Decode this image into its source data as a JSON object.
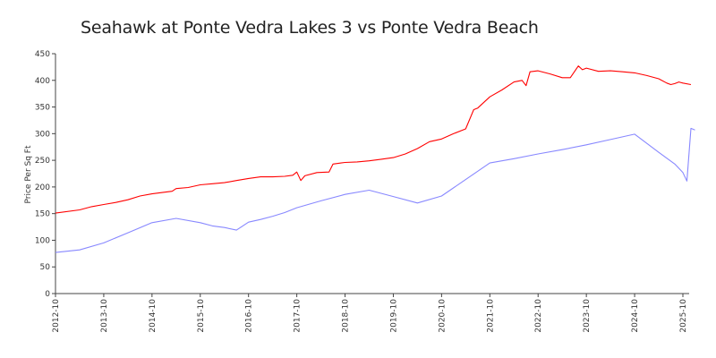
{
  "chart_data": {
    "type": "line",
    "title": "Seahawk at Ponte Vedra Lakes 3 vs Ponte Vedra Beach",
    "xlabel": "",
    "ylabel": "Price Per Sq Ft",
    "ylim": [
      0,
      450
    ],
    "yticks": [
      0,
      50,
      100,
      150,
      200,
      250,
      300,
      350,
      400,
      450
    ],
    "xlim": [
      "2012-10",
      "2025-12"
    ],
    "xticks": [
      "2012-10",
      "2013-10",
      "2014-10",
      "2015-10",
      "2016-10",
      "2017-10",
      "2018-10",
      "2019-10",
      "2020-10",
      "2021-10",
      "2022-10",
      "2023-10",
      "2024-10",
      "2025-10"
    ],
    "grid": false,
    "legend": "none",
    "series": [
      {
        "color": "#ff0000",
        "points": [
          [
            "2012-10",
            151
          ],
          [
            "2013-04",
            157
          ],
          [
            "2013-07",
            163
          ],
          [
            "2013-10",
            167
          ],
          [
            "2014-01",
            171
          ],
          [
            "2014-04",
            176
          ],
          [
            "2014-07",
            183
          ],
          [
            "2014-10",
            187
          ],
          [
            "2015-01",
            190
          ],
          [
            "2015-03",
            192
          ],
          [
            "2015-04",
            197
          ],
          [
            "2015-07",
            199
          ],
          [
            "2015-10",
            204
          ],
          [
            "2016-01",
            206
          ],
          [
            "2016-04",
            208
          ],
          [
            "2016-07",
            212
          ],
          [
            "2016-10",
            216
          ],
          [
            "2017-01",
            219
          ],
          [
            "2017-04",
            219
          ],
          [
            "2017-07",
            220
          ],
          [
            "2017-09",
            222
          ],
          [
            "2017-10",
            228
          ],
          [
            "2017-11",
            212
          ],
          [
            "2017-12",
            221
          ],
          [
            "2018-03",
            227
          ],
          [
            "2018-06",
            228
          ],
          [
            "2018-07",
            243
          ],
          [
            "2018-10",
            246
          ],
          [
            "2019-01",
            247
          ],
          [
            "2019-04",
            249
          ],
          [
            "2019-07",
            252
          ],
          [
            "2019-10",
            255
          ],
          [
            "2020-01",
            262
          ],
          [
            "2020-04",
            272
          ],
          [
            "2020-07",
            285
          ],
          [
            "2020-10",
            290
          ],
          [
            "2021-01",
            300
          ],
          [
            "2021-04",
            309
          ],
          [
            "2021-06",
            345
          ],
          [
            "2021-07",
            348
          ],
          [
            "2021-10",
            369
          ],
          [
            "2022-01",
            382
          ],
          [
            "2022-04",
            397
          ],
          [
            "2022-06",
            400
          ],
          [
            "2022-07",
            390
          ],
          [
            "2022-08",
            416
          ],
          [
            "2022-10",
            418
          ],
          [
            "2023-01",
            412
          ],
          [
            "2023-04",
            405
          ],
          [
            "2023-06",
            405
          ],
          [
            "2023-08",
            427
          ],
          [
            "2023-09",
            420
          ],
          [
            "2023-10",
            423
          ],
          [
            "2024-01",
            417
          ],
          [
            "2024-04",
            418
          ],
          [
            "2024-07",
            416
          ],
          [
            "2024-10",
            414
          ],
          [
            "2025-01",
            409
          ],
          [
            "2025-04",
            403
          ],
          [
            "2025-06",
            395
          ],
          [
            "2025-07",
            392
          ],
          [
            "2025-08",
            394
          ],
          [
            "2025-09",
            397
          ],
          [
            "2025-10",
            395
          ],
          [
            "2025-12",
            392
          ]
        ]
      },
      {
        "color": "#8888ff",
        "points": [
          [
            "2012-10",
            77
          ],
          [
            "2013-04",
            82
          ],
          [
            "2013-10",
            95
          ],
          [
            "2014-04",
            114
          ],
          [
            "2014-10",
            133
          ],
          [
            "2015-04",
            141
          ],
          [
            "2015-10",
            133
          ],
          [
            "2016-01",
            127
          ],
          [
            "2016-04",
            124
          ],
          [
            "2016-07",
            119
          ],
          [
            "2016-10",
            134
          ],
          [
            "2017-01",
            139
          ],
          [
            "2017-04",
            145
          ],
          [
            "2017-07",
            152
          ],
          [
            "2017-10",
            161
          ],
          [
            "2018-04",
            174
          ],
          [
            "2018-10",
            186
          ],
          [
            "2019-04",
            194
          ],
          [
            "2019-10",
            182
          ],
          [
            "2020-04",
            170
          ],
          [
            "2020-10",
            183
          ],
          [
            "2021-04",
            214
          ],
          [
            "2021-10",
            245
          ],
          [
            "2022-04",
            253
          ],
          [
            "2022-10",
            262
          ],
          [
            "2023-04",
            270
          ],
          [
            "2023-10",
            279
          ],
          [
            "2024-04",
            289
          ],
          [
            "2024-10",
            299
          ],
          [
            "2025-04",
            265
          ],
          [
            "2025-08",
            243
          ],
          [
            "2025-10",
            227
          ],
          [
            "2025-11",
            211
          ],
          [
            "2025-12",
            310
          ],
          [
            "2026-01",
            307
          ]
        ]
      }
    ]
  }
}
